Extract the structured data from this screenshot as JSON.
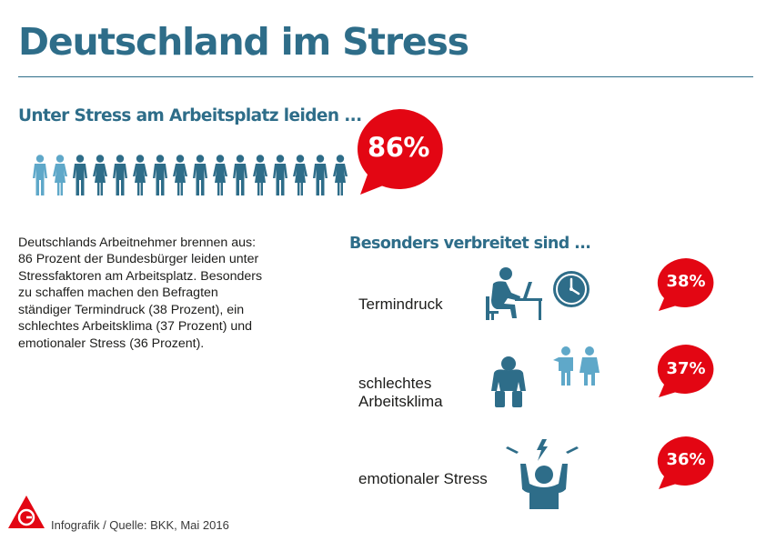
{
  "header": {
    "title": "Deutschland im Stress"
  },
  "intro": {
    "heading": "Unter Stress am Arbeitsplatz leiden ...",
    "body_lines": [
      "Deutschlands Arbeitnehmer brennen aus:",
      "86 Prozent der Bundesbürger leiden unter",
      "Stressfaktoren am Arbeitsplatz. Besonders",
      "zu schaffen machen den Befragten",
      "ständiger Termindruck (38 Prozent), ein",
      "schlechtes Arbeitsklima (37 Prozent) und",
      "emotionaler Stress (36 Prozent)."
    ]
  },
  "factors": {
    "heading": "Besonders verbreitet sind ..."
  },
  "chart_data": [
    {
      "type": "pictogram",
      "title": "Unter Stress am Arbeitsplatz leiden ...",
      "categories": [
        "Unter Stress am Arbeitsplatz leiden"
      ],
      "values": [
        86
      ],
      "value_labels": [
        "86%"
      ],
      "unit": "%",
      "icon_count": 16,
      "colors": {
        "highlight": "#5fa8c9",
        "base": "#2e6d89",
        "bubble": "#e30613"
      }
    },
    {
      "type": "bar",
      "title": "Besonders verbreitet sind ...",
      "categories": [
        "Termindruck",
        "schlechtes Arbeitsklima",
        "emotionaler Stress"
      ],
      "category_lines": [
        [
          "Termindruck"
        ],
        [
          "schlechtes",
          "Arbeitsklima"
        ],
        [
          "emotionaler Stress"
        ]
      ],
      "values": [
        38,
        37,
        36
      ],
      "value_labels": [
        "38%",
        "37%",
        "36%"
      ],
      "unit": "%",
      "icons": [
        "desk-worker-icon",
        "depressed-person-icon",
        "stressed-person-icon"
      ],
      "extra_icons": [
        "clock-icon",
        "colleagues-icon",
        "lightning-icon"
      ],
      "colors": {
        "bubble": "#e30613",
        "icon": "#2e6d89",
        "accent": "#5fa8c9"
      }
    }
  ],
  "footer": {
    "source": "Infografik / Quelle: BKK, Mai 2016",
    "logo_text": "IGM"
  }
}
